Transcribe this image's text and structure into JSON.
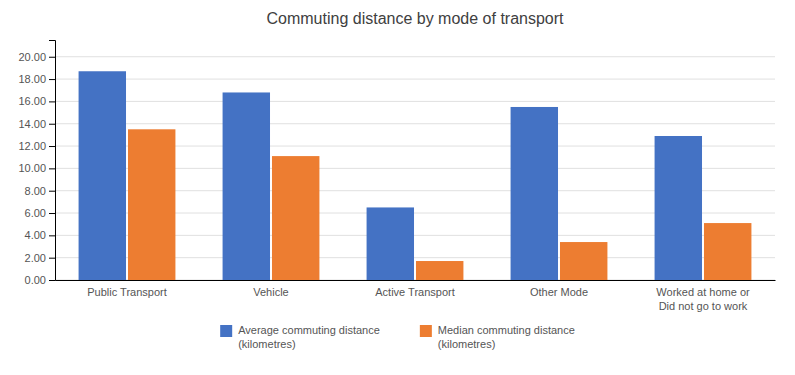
{
  "chart_data": {
    "type": "bar",
    "title": "Commuting distance by mode of transport",
    "categories": [
      "Public Transport",
      "Vehicle",
      "Active Transport",
      "Other Mode",
      "Worked at home or\nDid not go to work"
    ],
    "series": [
      {
        "name": "Average commuting distance\n(kilometres)",
        "color": "#4472C4",
        "values": [
          18.7,
          16.8,
          6.5,
          15.5,
          12.9
        ]
      },
      {
        "name": "Median commuting distance\n(kilometres)",
        "color": "#ED7D31",
        "values": [
          13.5,
          11.1,
          1.7,
          3.4,
          5.1
        ]
      }
    ],
    "ylim": [
      0,
      21.5
    ],
    "yticks": [
      {
        "value": 0.0,
        "label": "0.00"
      },
      {
        "value": 2.0,
        "label": "2.00"
      },
      {
        "value": 4.0,
        "label": "4.00"
      },
      {
        "value": 6.0,
        "label": "6.00"
      },
      {
        "value": 8.0,
        "label": "8.00"
      },
      {
        "value": 10.0,
        "label": "10.00"
      },
      {
        "value": 12.0,
        "label": "12.00"
      },
      {
        "value": 14.0,
        "label": "14.00"
      },
      {
        "value": 16.0,
        "label": "16.00"
      },
      {
        "value": 18.0,
        "label": "18.00"
      },
      {
        "value": 20.0,
        "label": "20.00"
      }
    ],
    "grid": true,
    "legend": "bottom"
  }
}
